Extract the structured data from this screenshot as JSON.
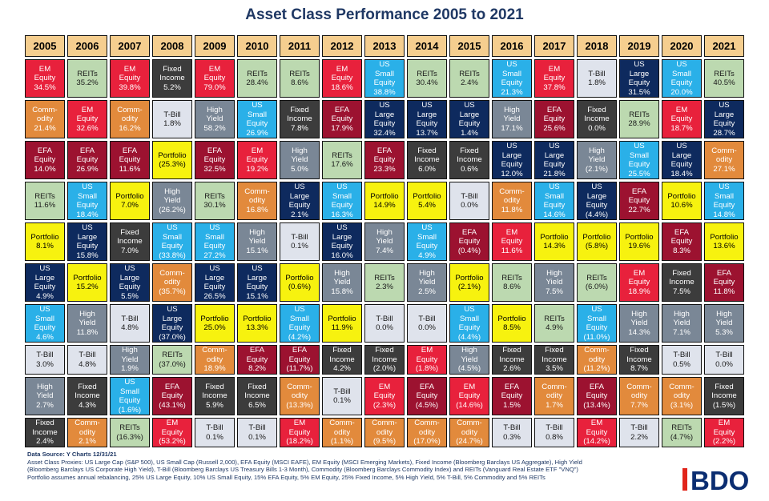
{
  "title": "Asset Class Performance 2005 to 2021",
  "footer": {
    "line1": "Data Source: Y Charts 12/31/21",
    "line2": "Asset Class Proxies: US Large Cap (S&P 500), US Small Cap (Russell 2,000), EFA Equity (MSCI EAFE), EM Equity (MSCI Emerging Markets), Fixed Income (Bloomberg Barclays US Aggregate), High Yield",
    "line3": "(Bloomberg Barclays US Corporate High Yield), T-Bill (Bloomberg Barclays US Treasury Bills 1-3 Month), Commodity (Bloomberg Barclays Commodity Index) and REITs (Vanguard Real Estate ETF \"VNQ\")",
    "line4": "Portfolio assumes annual rebalancing, 25% US Large Equity, 10% US Small Equity, 15% EFA Equity, 5% EM Equity, 25% Fixed Income, 5% High Yield, 5% T-Bill, 5% Commodity and 5% REITs"
  },
  "logo_text": "BDO",
  "colors": {
    "em": "#e8213c",
    "reit": "#bcd9b0",
    "com": "#e28a3c",
    "fi": "#3c3c3c",
    "tb": "#dfe3ec",
    "hy": "#7a8796",
    "usl": "#0e2a5e",
    "uss": "#2ab0e8",
    "efa": "#9c1230",
    "port": "#f7f20f",
    "year_header": "#f5ce8f",
    "title": "#1f3864",
    "logo_red": "#e1251b"
  },
  "chart_data": {
    "type": "table",
    "title": "Asset Class Performance 2005 to 2021",
    "years": [
      "2005",
      "2006",
      "2007",
      "2008",
      "2009",
      "2010",
      "2011",
      "2012",
      "2013",
      "2014",
      "2015",
      "2016",
      "2017",
      "2018",
      "2019",
      "2020",
      "2021"
    ],
    "columns": [
      [
        [
          "em",
          "EM Equity",
          "34.5%"
        ],
        [
          "com",
          "Comm- odity",
          "21.4%"
        ],
        [
          "efa",
          "EFA Equity",
          "14.0%"
        ],
        [
          "reit",
          "REITs",
          "11.6%"
        ],
        [
          "port",
          "Portfolio",
          "8.1%"
        ],
        [
          "usl",
          "US Large Equity",
          "4.9%"
        ],
        [
          "uss",
          "US Small Equity",
          "4.6%"
        ],
        [
          "tb",
          "T-Bill",
          "3.0%"
        ],
        [
          "hy",
          "High Yield",
          "2.7%"
        ],
        [
          "fi",
          "Fixed Income",
          "2.4%"
        ]
      ],
      [
        [
          "reit",
          "REITs",
          "35.2%"
        ],
        [
          "em",
          "EM Equity",
          "32.6%"
        ],
        [
          "efa",
          "EFA Equity",
          "26.9%"
        ],
        [
          "uss",
          "US Small Equity",
          "18.4%"
        ],
        [
          "usl",
          "US Large Equity",
          "15.8%"
        ],
        [
          "port",
          "Portfolio",
          "15.2%"
        ],
        [
          "hy",
          "High Yield",
          "11.8%"
        ],
        [
          "tb",
          "T-Bill",
          "4.8%"
        ],
        [
          "fi",
          "Fixed Income",
          "4.3%"
        ],
        [
          "com",
          "Comm- odity",
          "2.1%"
        ]
      ],
      [
        [
          "em",
          "EM Equity",
          "39.8%"
        ],
        [
          "com",
          "Comm- odity",
          "16.2%"
        ],
        [
          "efa",
          "EFA Equity",
          "11.6%"
        ],
        [
          "port",
          "Portfolio",
          "7.0%"
        ],
        [
          "fi",
          "Fixed Income",
          "7.0%"
        ],
        [
          "usl",
          "US Large Equity",
          "5.5%"
        ],
        [
          "tb",
          "T-Bill",
          "4.8%"
        ],
        [
          "hy",
          "High Yield",
          "1.9%"
        ],
        [
          "uss",
          "US Small Equity",
          "(1.6%)"
        ],
        [
          "reit",
          "REITs",
          "(16.3%)"
        ]
      ],
      [
        [
          "fi",
          "Fixed Income",
          "5.2%"
        ],
        [
          "tb",
          "T-Bill",
          "1.8%"
        ],
        [
          "port",
          "Portfolio",
          "(25.3%)"
        ],
        [
          "hy",
          "High Yield",
          "(26.2%)"
        ],
        [
          "uss",
          "US Small Equity",
          "(33.8%)"
        ],
        [
          "com",
          "Comm- odity",
          "(35.7%)"
        ],
        [
          "usl",
          "US Large Equity",
          "(37.0%)"
        ],
        [
          "reit",
          "REITs",
          "(37.0%)"
        ],
        [
          "efa",
          "EFA Equity",
          "(43.1%)"
        ],
        [
          "em",
          "EM Equity",
          "(53.2%)"
        ]
      ],
      [
        [
          "em",
          "EM Equity",
          "79.0%"
        ],
        [
          "hy",
          "High Yield",
          "58.2%"
        ],
        [
          "efa",
          "EFA Equity",
          "32.5%"
        ],
        [
          "reit",
          "REITs",
          "30.1%"
        ],
        [
          "uss",
          "US Small Equity",
          "27.2%"
        ],
        [
          "usl",
          "US Large Equity",
          "26.5%"
        ],
        [
          "port",
          "Portfolio",
          "25.0%"
        ],
        [
          "com",
          "Comm- odity",
          "18.9%"
        ],
        [
          "fi",
          "Fixed Income",
          "5.9%"
        ],
        [
          "tb",
          "T-Bill",
          "0.1%"
        ]
      ],
      [
        [
          "reit",
          "REITs",
          "28.4%"
        ],
        [
          "uss",
          "US Small Equity",
          "26.9%"
        ],
        [
          "em",
          "EM Equity",
          "19.2%"
        ],
        [
          "com",
          "Comm- odity",
          "16.8%"
        ],
        [
          "hy",
          "High Yield",
          "15.1%"
        ],
        [
          "usl",
          "US Large Equity",
          "15.1%"
        ],
        [
          "port",
          "Portfolio",
          "13.3%"
        ],
        [
          "efa",
          "EFA Equity",
          "8.2%"
        ],
        [
          "fi",
          "Fixed Income",
          "6.5%"
        ],
        [
          "tb",
          "T-Bill",
          "0.1%"
        ]
      ],
      [
        [
          "reit",
          "REITs",
          "8.6%"
        ],
        [
          "fi",
          "Fixed Income",
          "7.8%"
        ],
        [
          "hy",
          "High Yield",
          "5.0%"
        ],
        [
          "usl",
          "US Large Equity",
          "2.1%"
        ],
        [
          "tb",
          "T-Bill",
          "0.1%"
        ],
        [
          "port",
          "Portfolio",
          "(0.6%)"
        ],
        [
          "uss",
          "US Small Equity",
          "(4.2%)"
        ],
        [
          "efa",
          "EFA Equity",
          "(11.7%)"
        ],
        [
          "com",
          "Comm- odity",
          "(13.3%)"
        ],
        [
          "em",
          "EM Equity",
          "(18.2%)"
        ]
      ],
      [
        [
          "em",
          "EM Equity",
          "18.6%"
        ],
        [
          "efa",
          "EFA Equity",
          "17.9%"
        ],
        [
          "reit",
          "REITs",
          "17.6%"
        ],
        [
          "uss",
          "US Small Equity",
          "16.3%"
        ],
        [
          "usl",
          "US Large Equity",
          "16.0%"
        ],
        [
          "hy",
          "High Yield",
          "15.8%"
        ],
        [
          "port",
          "Portfolio",
          "11.9%"
        ],
        [
          "fi",
          "Fixed Income",
          "4.2%"
        ],
        [
          "tb",
          "T-Bill",
          "0.1%"
        ],
        [
          "com",
          "Comm- odity",
          "(1.1%)"
        ]
      ],
      [
        [
          "uss",
          "US Small Equity",
          "38.8%"
        ],
        [
          "usl",
          "US Large Equity",
          "32.4%"
        ],
        [
          "efa",
          "EFA Equity",
          "23.3%"
        ],
        [
          "port",
          "Portfolio",
          "14.9%"
        ],
        [
          "hy",
          "High Yield",
          "7.4%"
        ],
        [
          "reit",
          "REITs",
          "2.3%"
        ],
        [
          "tb",
          "T-Bill",
          "0.0%"
        ],
        [
          "fi",
          "Fixed Income",
          "(2.0%)"
        ],
        [
          "em",
          "EM Equity",
          "(2.3%)"
        ],
        [
          "com",
          "Comm- odity",
          "(9.5%)"
        ]
      ],
      [
        [
          "reit",
          "REITs",
          "30.4%"
        ],
        [
          "usl",
          "US Large Equity",
          "13.7%"
        ],
        [
          "fi",
          "Fixed Income",
          "6.0%"
        ],
        [
          "port",
          "Portfolio",
          "5.4%"
        ],
        [
          "uss",
          "US Small Equity",
          "4.9%"
        ],
        [
          "hy",
          "High Yield",
          "2.5%"
        ],
        [
          "tb",
          "T-Bill",
          "0.0%"
        ],
        [
          "em",
          "EM Equity",
          "(1.8%)"
        ],
        [
          "efa",
          "EFA Equity",
          "(4.5%)"
        ],
        [
          "com",
          "Comm- odity",
          "(17.0%)"
        ]
      ],
      [
        [
          "reit",
          "REITs",
          "2.4%"
        ],
        [
          "usl",
          "US Large Equity",
          "1.4%"
        ],
        [
          "fi",
          "Fixed Income",
          "0.6%"
        ],
        [
          "tb",
          "T-Bill",
          "0.0%"
        ],
        [
          "efa",
          "EFA Equity",
          "(0.4%)"
        ],
        [
          "port",
          "Portfolio",
          "(2.1%)"
        ],
        [
          "uss",
          "US Small Equity",
          "(4.4%)"
        ],
        [
          "hy",
          "High Yield",
          "(4.5%)"
        ],
        [
          "em",
          "EM Equity",
          "(14.6%)"
        ],
        [
          "com",
          "Comm- odity",
          "(24.7%)"
        ]
      ],
      [
        [
          "uss",
          "US Small Equity",
          "21.3%"
        ],
        [
          "hy",
          "High Yield",
          "17.1%"
        ],
        [
          "usl",
          "US Large Equity",
          "12.0%"
        ],
        [
          "com",
          "Comm- odity",
          "11.8%"
        ],
        [
          "em",
          "EM Equity",
          "11.6%"
        ],
        [
          "reit",
          "REITs",
          "8.6%"
        ],
        [
          "port",
          "Portfolio",
          "8.5%"
        ],
        [
          "fi",
          "Fixed Income",
          "2.6%"
        ],
        [
          "efa",
          "EFA Equity",
          "1.5%"
        ],
        [
          "tb",
          "T-Bill",
          "0.3%"
        ]
      ],
      [
        [
          "em",
          "EM Equity",
          "37.8%"
        ],
        [
          "efa",
          "EFA Equity",
          "25.6%"
        ],
        [
          "usl",
          "US Large Equity",
          "21.8%"
        ],
        [
          "uss",
          "US Small Equity",
          "14.6%"
        ],
        [
          "port",
          "Portfolio",
          "14.3%"
        ],
        [
          "hy",
          "High Yield",
          "7.5%"
        ],
        [
          "reit",
          "REITs",
          "4.9%"
        ],
        [
          "fi",
          "Fixed Income",
          "3.5%"
        ],
        [
          "com",
          "Comm- odity",
          "1.7%"
        ],
        [
          "tb",
          "T-Bill",
          "0.8%"
        ]
      ],
      [
        [
          "tb",
          "T-Bill",
          "1.8%"
        ],
        [
          "fi",
          "Fixed Income",
          "0.0%"
        ],
        [
          "hy",
          "High Yield",
          "(2.1%)"
        ],
        [
          "usl",
          "US Large Equity",
          "(4.4%)"
        ],
        [
          "port",
          "Portfolio",
          "(5.8%)"
        ],
        [
          "reit",
          "REITs",
          "(6.0%)"
        ],
        [
          "uss",
          "US Small Equity",
          "(11.0%)"
        ],
        [
          "com",
          "Comm- odity",
          "(11.2%)"
        ],
        [
          "efa",
          "EFA Equity",
          "(13.4%)"
        ],
        [
          "em",
          "EM Equity",
          "(14.2%)"
        ]
      ],
      [
        [
          "usl",
          "US Large Equity",
          "31.5%"
        ],
        [
          "reit",
          "REITs",
          "28.9%"
        ],
        [
          "uss",
          "US Small Equity",
          "25.5%"
        ],
        [
          "efa",
          "EFA Equity",
          "22.7%"
        ],
        [
          "port",
          "Portfolio",
          "19.6%"
        ],
        [
          "em",
          "EM Equity",
          "18.9%"
        ],
        [
          "hy",
          "High Yield",
          "14.3%"
        ],
        [
          "fi",
          "Fixed Income",
          "8.7%"
        ],
        [
          "com",
          "Comm- odity",
          "7.7%"
        ],
        [
          "tb",
          "T-Bill",
          "2.2%"
        ]
      ],
      [
        [
          "uss",
          "US Small Equity",
          "20.0%"
        ],
        [
          "em",
          "EM Equity",
          "18.7%"
        ],
        [
          "usl",
          "US Large Equity",
          "18.4%"
        ],
        [
          "port",
          "Portfolio",
          "10.6%"
        ],
        [
          "efa",
          "EFA Equity",
          "8.3%"
        ],
        [
          "fi",
          "Fixed Income",
          "7.5%"
        ],
        [
          "hy",
          "High Yield",
          "7.1%"
        ],
        [
          "tb",
          "T-Bill",
          "0.5%"
        ],
        [
          "com",
          "Comm- odity",
          "(3.1%)"
        ],
        [
          "reit",
          "REITs",
          "(4.7%)"
        ]
      ],
      [
        [
          "reit",
          "REITs",
          "40.5%"
        ],
        [
          "usl",
          "US Large Equity",
          "28.7%"
        ],
        [
          "com",
          "Comm- odity",
          "27.1%"
        ],
        [
          "uss",
          "US Small Equity",
          "14.8%"
        ],
        [
          "port",
          "Portfolio",
          "13.6%"
        ],
        [
          "efa",
          "EFA Equity",
          "11.8%"
        ],
        [
          "hy",
          "High Yield",
          "5.3%"
        ],
        [
          "tb",
          "T-Bill",
          "0.0%"
        ],
        [
          "fi",
          "Fixed Income",
          "(1.5%)"
        ],
        [
          "em",
          "EM Equity",
          "(2.2%)"
        ]
      ]
    ]
  }
}
